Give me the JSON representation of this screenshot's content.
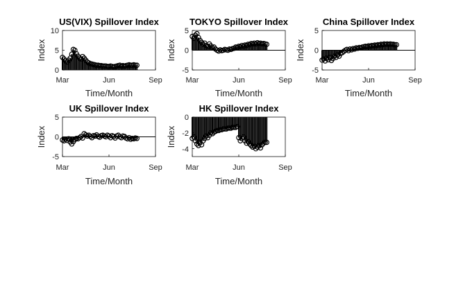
{
  "chart_data": [
    {
      "id": "vix",
      "type": "stem",
      "title": "US(VIX) Spillover Index",
      "xlabel": "Time/Month",
      "ylabel": "Index",
      "xticks": [
        "Mar",
        "Jun",
        "Sep"
      ],
      "ylim": [
        0,
        10
      ],
      "yticks": [
        0,
        5,
        10
      ],
      "marker": "circle",
      "x": [
        0,
        0.5,
        1,
        1.5,
        2,
        2.5,
        3,
        3.5,
        4,
        4.5,
        5,
        5.5,
        6,
        6.5,
        7,
        7.5,
        8,
        8.5,
        9,
        9.5,
        10,
        10.5,
        11,
        11.5,
        12,
        12.5,
        13,
        13.5,
        14,
        14.5,
        15,
        15.5,
        16,
        16.5,
        17,
        17.5,
        18,
        18.5,
        19,
        19.5,
        20,
        20.5,
        21,
        21.5,
        22,
        22.5,
        23,
        23.5,
        24
      ],
      "values": [
        3.2,
        2.8,
        2.3,
        2.0,
        2.5,
        3.0,
        4.0,
        5.2,
        5.0,
        4.1,
        3.5,
        3.0,
        2.8,
        3.4,
        3.0,
        2.5,
        2.0,
        1.8,
        1.6,
        1.5,
        1.4,
        1.3,
        1.2,
        1.2,
        1.1,
        1.1,
        1.0,
        1.0,
        1.0,
        0.9,
        0.9,
        1.0,
        0.9,
        0.8,
        0.9,
        1.0,
        1.1,
        1.2,
        1.0,
        1.1,
        1.0,
        1.1,
        1.2,
        1.3,
        1.2,
        1.2,
        1.3,
        1.2,
        1.2
      ]
    },
    {
      "id": "tokyo",
      "type": "stem",
      "title": "TOKYO Spillover Index",
      "xlabel": "Time/Month",
      "ylabel": "Index",
      "xticks": [
        "Mar",
        "Jun",
        "Sep"
      ],
      "ylim": [
        -5,
        5
      ],
      "yticks": [
        -5,
        0,
        5
      ],
      "marker": "circle",
      "x": [
        0,
        0.5,
        1,
        1.5,
        2,
        2.5,
        3,
        3.5,
        4,
        4.5,
        5,
        5.5,
        6,
        6.5,
        7,
        7.5,
        8,
        8.5,
        9,
        9.5,
        10,
        10.5,
        11,
        11.5,
        12,
        12.5,
        13,
        13.5,
        14,
        14.5,
        15,
        15.5,
        16,
        16.5,
        17,
        17.5,
        18,
        18.5,
        19,
        19.5,
        20,
        20.5,
        21,
        21.5,
        22,
        22.5,
        23,
        23.5,
        24
      ],
      "values": [
        3.5,
        3.0,
        3.8,
        4.2,
        3.2,
        2.5,
        2.0,
        1.5,
        1.8,
        1.2,
        1.0,
        1.6,
        1.1,
        0.6,
        0.8,
        0.3,
        0.0,
        -0.2,
        0.1,
        -0.1,
        0.0,
        0.2,
        0.1,
        0.0,
        0.3,
        0.2,
        0.4,
        0.5,
        0.8,
        0.7,
        1.0,
        0.9,
        1.2,
        1.0,
        1.3,
        1.2,
        1.5,
        1.4,
        1.7,
        1.6,
        1.8,
        1.6,
        1.9,
        1.7,
        1.8,
        1.6,
        1.7,
        1.6,
        1.5
      ]
    },
    {
      "id": "china",
      "type": "stem",
      "title": "China Spillover Index",
      "xlabel": "Time/Month",
      "ylabel": "Index",
      "xticks": [
        "Mar",
        "Jun",
        "Sep"
      ],
      "ylim": [
        -5,
        5
      ],
      "yticks": [
        -5,
        0,
        5
      ],
      "marker": "circle",
      "x": [
        0,
        0.5,
        1,
        1.5,
        2,
        2.5,
        3,
        3.5,
        4,
        4.5,
        5,
        5.5,
        6,
        6.5,
        7,
        7.5,
        8,
        8.5,
        9,
        9.5,
        10,
        10.5,
        11,
        11.5,
        12,
        12.5,
        13,
        13.5,
        14,
        14.5,
        15,
        15.5,
        16,
        16.5,
        17,
        17.5,
        18,
        18.5,
        19,
        19.5,
        20,
        20.5,
        21,
        21.5,
        22,
        22.5,
        23,
        23.5,
        24
      ],
      "values": [
        -2.5,
        -2.2,
        -2.7,
        -2.0,
        -2.4,
        -1.8,
        -2.6,
        -2.1,
        -1.5,
        -1.8,
        -1.2,
        -1.5,
        -0.8,
        -0.6,
        -0.3,
        0.0,
        0.2,
        -0.1,
        0.3,
        0.1,
        0.4,
        0.3,
        0.6,
        0.5,
        0.7,
        0.6,
        0.8,
        0.9,
        1.0,
        0.9,
        1.1,
        1.0,
        1.2,
        1.1,
        1.3,
        1.2,
        1.4,
        1.3,
        1.5,
        1.4,
        1.6,
        1.5,
        1.6,
        1.5,
        1.6,
        1.5,
        1.5,
        1.4,
        1.4
      ]
    },
    {
      "id": "uk",
      "type": "stem",
      "title": "UK Spillover Index",
      "xlabel": "Time/Month",
      "ylabel": "Index",
      "xticks": [
        "Mar",
        "Jun",
        "Sep"
      ],
      "ylim": [
        -5,
        5
      ],
      "yticks": [
        -5,
        0,
        5
      ],
      "marker": "circle",
      "x": [
        0,
        0.5,
        1,
        1.5,
        2,
        2.5,
        3,
        3.5,
        4,
        4.5,
        5,
        5.5,
        6,
        6.5,
        7,
        7.5,
        8,
        8.5,
        9,
        9.5,
        10,
        10.5,
        11,
        11.5,
        12,
        12.5,
        13,
        13.5,
        14,
        14.5,
        15,
        15.5,
        16,
        16.5,
        17,
        17.5,
        18,
        18.5,
        19,
        19.5,
        20,
        20.5,
        21,
        21.5,
        22,
        22.5,
        23,
        23.5,
        24
      ],
      "values": [
        -0.8,
        -1.0,
        -0.6,
        -0.9,
        -0.5,
        -1.3,
        -1.8,
        -1.2,
        -0.7,
        -0.4,
        -0.5,
        -0.2,
        0.1,
        -0.3,
        0.8,
        0.5,
        0.2,
        0.4,
        0.1,
        -0.2,
        0.3,
        0.2,
        0.5,
        0.1,
        -0.1,
        0.3,
        0.4,
        0.2,
        0.0,
        0.4,
        0.2,
        -0.2,
        0.3,
        0.1,
        -0.3,
        0.2,
        0.4,
        0.0,
        -0.2,
        0.2,
        0.1,
        -0.3,
        -0.5,
        -0.2,
        -0.6,
        -0.4,
        -0.5,
        -0.3,
        -0.4
      ]
    },
    {
      "id": "hk",
      "type": "stem",
      "title": "HK Spillover Index",
      "xlabel": "Time/Month",
      "ylabel": "Index",
      "xticks": [
        "Mar",
        "Jun",
        "Sep"
      ],
      "ylim": [
        -5,
        0
      ],
      "yticks": [
        -4,
        -2,
        0
      ],
      "marker": "circle",
      "x": [
        0,
        0.5,
        1,
        1.5,
        2,
        2.5,
        3,
        3.5,
        4,
        4.5,
        5,
        5.5,
        6,
        6.5,
        7,
        7.5,
        8,
        8.5,
        9,
        9.5,
        10,
        10.5,
        11,
        11.5,
        12,
        12.5,
        13,
        13.5,
        14,
        14.5,
        15,
        15.5,
        16,
        16.5,
        17,
        17.5,
        18,
        18.5,
        19,
        19.5,
        20,
        20.5,
        21,
        21.5,
        22,
        22.5,
        23,
        23.5,
        24
      ],
      "values": [
        -2.7,
        -2.5,
        -3.0,
        -3.4,
        -3.6,
        -3.2,
        -3.5,
        -3.0,
        -2.7,
        -2.4,
        -2.6,
        -2.3,
        -2.0,
        -2.1,
        -1.9,
        -1.8,
        -1.7,
        -1.7,
        -1.6,
        -1.6,
        -1.5,
        -1.5,
        -1.5,
        -1.4,
        -1.4,
        -1.4,
        -1.3,
        -1.3,
        -1.3,
        -1.2,
        -2.6,
        -3.0,
        -2.7,
        -2.5,
        -3.0,
        -3.3,
        -3.1,
        -3.4,
        -3.6,
        -3.8,
        -3.7,
        -4.0,
        -3.8,
        -3.6,
        -3.9,
        -3.5,
        -3.3,
        -3.2,
        -3.2
      ]
    }
  ]
}
